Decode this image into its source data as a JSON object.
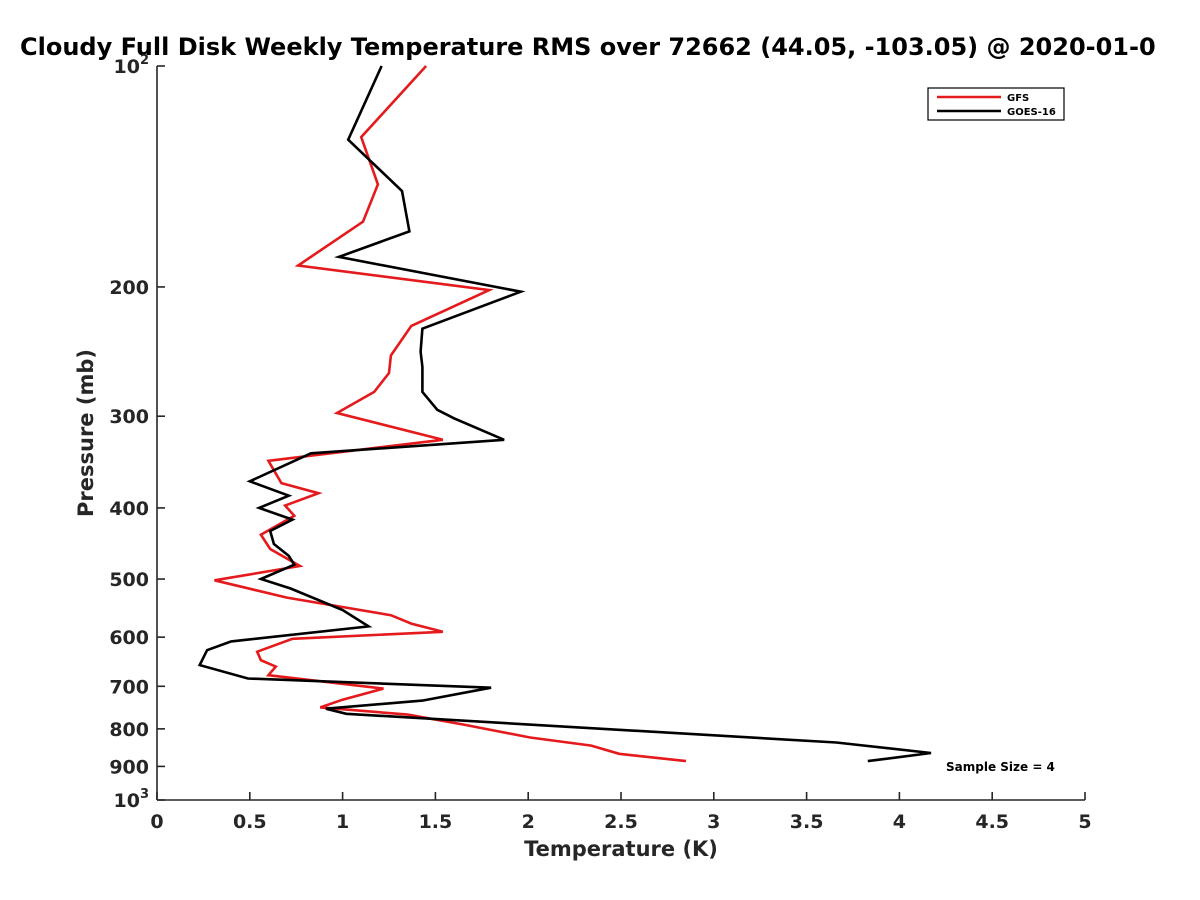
{
  "chart_data": {
    "type": "line",
    "title": "Cloudy Full Disk Weekly Temperature RMS over 72662 (44.05, -103.05) @ 2020-01-0",
    "xlabel": "Temperature (K)",
    "ylabel": "Pressure (mb)",
    "xlim": [
      0,
      5
    ],
    "ylim": [
      100,
      1000
    ],
    "y_scale": "log",
    "y_reversed": true,
    "grid": false,
    "legend_position": "top-right",
    "x_ticks": [
      {
        "value": 0,
        "label": "0"
      },
      {
        "value": 0.5,
        "label": "0.5"
      },
      {
        "value": 1,
        "label": "1"
      },
      {
        "value": 1.5,
        "label": "1.5"
      },
      {
        "value": 2,
        "label": "2"
      },
      {
        "value": 2.5,
        "label": "2.5"
      },
      {
        "value": 3,
        "label": "3"
      },
      {
        "value": 3.5,
        "label": "3.5"
      },
      {
        "value": 4,
        "label": "4"
      },
      {
        "value": 4.5,
        "label": "4.5"
      },
      {
        "value": 5,
        "label": "5"
      }
    ],
    "y_ticks": [
      {
        "value": 100,
        "base": "10",
        "exp": "2"
      },
      {
        "value": 200,
        "base": "200",
        "exp": ""
      },
      {
        "value": 300,
        "base": "300",
        "exp": ""
      },
      {
        "value": 400,
        "base": "400",
        "exp": ""
      },
      {
        "value": 500,
        "base": "500",
        "exp": ""
      },
      {
        "value": 600,
        "base": "600",
        "exp": ""
      },
      {
        "value": 700,
        "base": "700",
        "exp": ""
      },
      {
        "value": 800,
        "base": "800",
        "exp": ""
      },
      {
        "value": 900,
        "base": "900",
        "exp": ""
      },
      {
        "value": 1000,
        "base": "10",
        "exp": "3"
      }
    ],
    "series": [
      {
        "name": "GFS",
        "color": "#e41a1c",
        "points": [
          [
            1.45,
            100
          ],
          [
            1.1,
            125
          ],
          [
            1.19,
            145
          ],
          [
            1.11,
            163
          ],
          [
            0.76,
            187
          ],
          [
            1.79,
            202
          ],
          [
            1.37,
            226
          ],
          [
            1.26,
            248
          ],
          [
            1.25,
            262
          ],
          [
            1.17,
            278
          ],
          [
            0.97,
            297
          ],
          [
            1.54,
            323
          ],
          [
            0.6,
            345
          ],
          [
            0.67,
            370
          ],
          [
            0.87,
            382
          ],
          [
            0.69,
            397
          ],
          [
            0.74,
            410
          ],
          [
            0.56,
            435
          ],
          [
            0.61,
            455
          ],
          [
            0.77,
            480
          ],
          [
            0.31,
            502
          ],
          [
            0.7,
            530
          ],
          [
            1.26,
            560
          ],
          [
            1.37,
            575
          ],
          [
            1.54,
            590
          ],
          [
            0.73,
            603
          ],
          [
            0.54,
            628
          ],
          [
            0.56,
            645
          ],
          [
            0.64,
            658
          ],
          [
            0.6,
            676
          ],
          [
            1.22,
            705
          ],
          [
            1.0,
            730
          ],
          [
            0.88,
            748
          ],
          [
            1.35,
            765
          ],
          [
            1.66,
            790
          ],
          [
            2.01,
            822
          ],
          [
            2.34,
            843
          ],
          [
            2.49,
            865
          ],
          [
            2.85,
            885
          ]
        ]
      },
      {
        "name": "GOES-16",
        "color": "#000000",
        "points": [
          [
            1.21,
            100
          ],
          [
            1.03,
            126
          ],
          [
            1.32,
            148
          ],
          [
            1.36,
            168
          ],
          [
            0.98,
            182
          ],
          [
            1.96,
            203
          ],
          [
            1.43,
            228
          ],
          [
            1.42,
            245
          ],
          [
            1.43,
            257
          ],
          [
            1.43,
            278
          ],
          [
            1.51,
            294
          ],
          [
            1.6,
            302
          ],
          [
            1.87,
            323
          ],
          [
            0.83,
            337
          ],
          [
            0.5,
            368
          ],
          [
            0.71,
            385
          ],
          [
            0.55,
            400
          ],
          [
            0.73,
            415
          ],
          [
            0.61,
            430
          ],
          [
            0.63,
            448
          ],
          [
            0.71,
            465
          ],
          [
            0.74,
            478
          ],
          [
            0.56,
            500
          ],
          [
            0.72,
            515
          ],
          [
            1.0,
            551
          ],
          [
            1.14,
            580
          ],
          [
            0.4,
            608
          ],
          [
            0.27,
            625
          ],
          [
            0.23,
            655
          ],
          [
            0.49,
            683
          ],
          [
            1.8,
            703
          ],
          [
            1.43,
            732
          ],
          [
            0.91,
            751
          ],
          [
            1.02,
            763
          ],
          [
            3.66,
            835
          ],
          [
            4.17,
            863
          ],
          [
            3.83,
            885
          ]
        ]
      }
    ],
    "annotations": [
      {
        "text": "Sample Size = 4"
      }
    ]
  }
}
